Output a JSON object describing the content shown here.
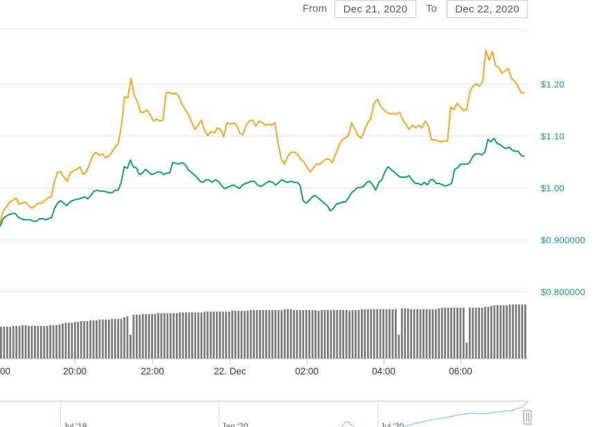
{
  "range_selector": {
    "from_label": "From",
    "from_value": "Dec 21, 2020",
    "to_label": "To",
    "to_value": "Dec 22, 2020"
  },
  "chart_data": {
    "type": "line",
    "x_tick_labels": [
      "00",
      "20:00",
      "22:00",
      "22. Dec",
      "02:00",
      "04:00",
      "06:00"
    ],
    "y_tick_labels": [
      "$1.20",
      "$1.10",
      "$1.00",
      "$0.900000",
      "$0.800000"
    ],
    "ylim": [
      0.8,
      1.28
    ],
    "grid": true,
    "series": [
      {
        "color": "#f5a623",
        "values": [
          0.93,
          0.955,
          0.962,
          0.972,
          0.975,
          0.98,
          0.968,
          0.97,
          0.972,
          0.965,
          0.96,
          0.965,
          0.97,
          0.97,
          0.975,
          0.98,
          0.982,
          1.01,
          1.03,
          1.03,
          1.02,
          1.012,
          1.028,
          1.032,
          1.035,
          1.04,
          1.025,
          1.03,
          1.045,
          1.062,
          1.068,
          1.062,
          1.065,
          1.058,
          1.06,
          1.068,
          1.078,
          1.085,
          1.12,
          1.175,
          1.173,
          1.21,
          1.177,
          1.165,
          1.145,
          1.145,
          1.15,
          1.14,
          1.128,
          1.132,
          1.128,
          1.13,
          1.183,
          1.183,
          1.18,
          1.182,
          1.175,
          1.16,
          1.15,
          1.14,
          1.125,
          1.112,
          1.12,
          1.13,
          1.11,
          1.1,
          1.108,
          1.105,
          1.115,
          1.112,
          1.098,
          1.125,
          1.122,
          1.125,
          1.12,
          1.105,
          1.102,
          1.12,
          1.128,
          1.13,
          1.118,
          1.128,
          1.125,
          1.12,
          1.122,
          1.12,
          1.125,
          1.085,
          1.055,
          1.045,
          1.06,
          1.068,
          1.068,
          1.065,
          1.055,
          1.05,
          1.04,
          1.03,
          1.038,
          1.045,
          1.045,
          1.05,
          1.055,
          1.055,
          1.048,
          1.065,
          1.08,
          1.092,
          1.095,
          1.1,
          1.125,
          1.112,
          1.1,
          1.095,
          1.11,
          1.125,
          1.132,
          1.162,
          1.17,
          1.158,
          1.15,
          1.145,
          1.142,
          1.142,
          1.142,
          1.145,
          1.13,
          1.122,
          1.112,
          1.12,
          1.115,
          1.12,
          1.115,
          1.128,
          1.12,
          1.092,
          1.092,
          1.09,
          1.088,
          1.09,
          1.09,
          1.155,
          1.15,
          1.162,
          1.155,
          1.148,
          1.15,
          1.185,
          1.195,
          1.2,
          1.195,
          1.205,
          1.265,
          1.245,
          1.262,
          1.235,
          1.232,
          1.22,
          1.225,
          1.23,
          1.21,
          1.205,
          1.195,
          1.183,
          1.183
        ]
      },
      {
        "color": "#139d71",
        "values": [
          0.925,
          0.94,
          0.945,
          0.948,
          0.95,
          0.95,
          0.943,
          0.94,
          0.938,
          0.938,
          0.938,
          0.935,
          0.935,
          0.94,
          0.94,
          0.938,
          0.94,
          0.942,
          0.96,
          0.97,
          0.975,
          0.97,
          0.965,
          0.972,
          0.975,
          0.977,
          0.978,
          0.98,
          0.982,
          0.978,
          0.985,
          0.993,
          0.995,
          0.993,
          0.993,
          0.992,
          0.99,
          0.99,
          0.995,
          0.995,
          1.01,
          1.04,
          1.037,
          1.053,
          1.04,
          1.038,
          1.025,
          1.028,
          1.035,
          1.03,
          1.025,
          1.027,
          1.03,
          1.03,
          1.025,
          1.028,
          1.028,
          1.048,
          1.047,
          1.045,
          1.048,
          1.045,
          1.035,
          1.03,
          1.025,
          1.02,
          1.012,
          1.01,
          1.015,
          1.015,
          1.01,
          1.015,
          1.012,
          1.005,
          0.998,
          1.0,
          1.003,
          1.005,
          1.002,
          0.998,
          1.005,
          1.008,
          1.01,
          1.012,
          1.012,
          1.005,
          1.002,
          1.005,
          1.01,
          1.012,
          1.01,
          1.005,
          1.01,
          1.015,
          1.012,
          1.01,
          1.012,
          1.01,
          1.01,
          1.005,
          0.975,
          0.97,
          0.975,
          0.982,
          0.985,
          0.98,
          0.975,
          0.97,
          0.965,
          0.955,
          0.96,
          0.968,
          0.97,
          0.972,
          0.972,
          0.98,
          0.99,
          0.995,
          1.0,
          1.0,
          1.002,
          1.01,
          1.012,
          1.005,
          0.995,
          1.01,
          1.015,
          1.03,
          1.04,
          1.035,
          1.03,
          1.025,
          1.02,
          1.02,
          1.02,
          1.023,
          1.015,
          1.008,
          1.008,
          1.005,
          1.01,
          1.005,
          1.015,
          1.015,
          1.008,
          1.008,
          1.005,
          1.003,
          1.005,
          1.008,
          1.035,
          1.038,
          1.045,
          1.045,
          1.045,
          1.048,
          1.06,
          1.065,
          1.065,
          1.063,
          1.068,
          1.093,
          1.088,
          1.095,
          1.085,
          1.083,
          1.078,
          1.075,
          1.078,
          1.072,
          1.07,
          1.07,
          1.062,
          1.06
        ]
      }
    ],
    "volume_values": [
      40,
      40,
      40,
      40,
      41,
      41,
      41,
      42,
      42,
      41,
      41,
      41,
      41,
      41,
      41,
      41,
      42,
      42,
      42,
      43,
      44,
      45,
      45,
      45,
      46,
      46,
      47,
      47,
      47,
      48,
      48,
      48,
      49,
      49,
      49,
      49,
      50,
      50,
      50,
      50,
      52,
      53,
      30,
      55,
      55,
      55,
      56,
      56,
      56,
      56,
      56,
      57,
      57,
      57,
      57,
      57,
      57,
      57,
      58,
      58,
      58,
      58,
      58,
      58,
      58,
      58,
      59,
      59,
      59,
      59,
      59,
      59,
      59,
      59,
      59,
      60,
      60,
      60,
      60,
      60,
      60,
      61,
      61,
      61,
      61,
      61,
      61,
      61,
      61,
      61,
      61,
      61,
      62,
      62,
      62,
      61,
      61,
      61,
      61,
      61,
      61,
      61,
      61,
      60,
      61,
      61,
      61,
      61,
      61,
      61,
      61,
      61,
      61,
      60,
      61,
      61,
      61,
      62,
      62,
      62,
      62,
      62,
      62,
      62,
      62,
      62,
      62,
      62,
      62,
      30,
      63,
      63,
      63,
      62,
      62,
      62,
      62,
      62,
      62,
      62,
      62,
      62,
      63,
      64,
      64,
      64,
      64,
      64,
      64,
      64,
      64,
      20,
      64,
      64,
      64,
      64,
      64,
      65,
      65,
      66,
      67,
      67,
      67,
      67,
      67,
      68,
      68,
      68,
      68,
      68,
      68
    ],
    "navigator_labels": [
      "Jul '19",
      "Jan '20",
      "Jul '20"
    ]
  }
}
